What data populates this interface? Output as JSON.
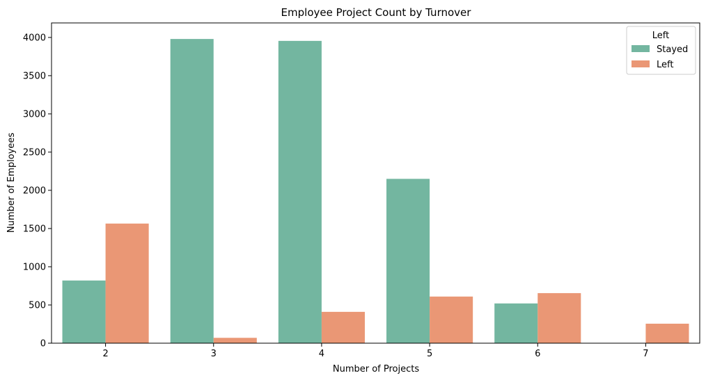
{
  "chart_data": {
    "type": "bar",
    "title": "Employee Project Count by Turnover",
    "xlabel": "Number of Projects",
    "ylabel": "Number of Employees",
    "categories": [
      "2",
      "3",
      "4",
      "5",
      "6",
      "7"
    ],
    "series": [
      {
        "name": "Stayed",
        "color": "#73b6a0",
        "values": [
          820,
          3980,
          3955,
          2150,
          520,
          0
        ]
      },
      {
        "name": "Left",
        "color": "#ea9775",
        "values": [
          1565,
          70,
          410,
          610,
          655,
          255
        ]
      }
    ],
    "ylim": [
      0,
      4190
    ],
    "yticks": [
      0,
      500,
      1000,
      1500,
      2000,
      2500,
      3000,
      3500,
      4000
    ],
    "grid": false,
    "legend": {
      "title": "Left",
      "placement": "top-right"
    }
  }
}
